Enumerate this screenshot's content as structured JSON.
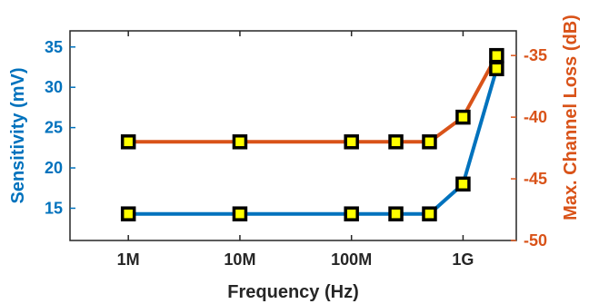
{
  "chart_data": {
    "type": "line",
    "xlabel": "Frequency (Hz)",
    "ylabel_left": "Sensitivity (mV)",
    "ylabel_right": "Max. Channel Loss (dB)",
    "x_scale": "log",
    "xlim": [
      300000,
      3000000000
    ],
    "x_ticks": [
      {
        "value": 1000000,
        "label": "1M"
      },
      {
        "value": 10000000,
        "label": "10M"
      },
      {
        "value": 100000000,
        "label": "100M"
      },
      {
        "value": 1000000000,
        "label": "1G"
      }
    ],
    "ylim_left": [
      11,
      37
    ],
    "y_ticks_left": [
      15,
      20,
      25,
      30,
      35
    ],
    "ylim_right": [
      -50,
      -33
    ],
    "y_ticks_right": [
      -50,
      -45,
      -40,
      -35
    ],
    "grid": false,
    "series": [
      {
        "axis": "left",
        "color": "#0072BD",
        "x": [
          1000000,
          10000000,
          100000000,
          250000000,
          500000000,
          1000000000,
          2000000000
        ],
        "values": [
          14.3,
          14.3,
          14.3,
          14.3,
          14.3,
          18,
          32.3
        ]
      },
      {
        "axis": "right",
        "color": "#D95319",
        "x": [
          1000000,
          10000000,
          100000000,
          250000000,
          500000000,
          1000000000,
          2000000000
        ],
        "values": [
          -42,
          -42,
          -42,
          -42,
          -42,
          -40,
          -35
        ]
      }
    ],
    "marker": {
      "fill": "#FFFF00",
      "edge": "#000000",
      "shape": "square"
    }
  }
}
